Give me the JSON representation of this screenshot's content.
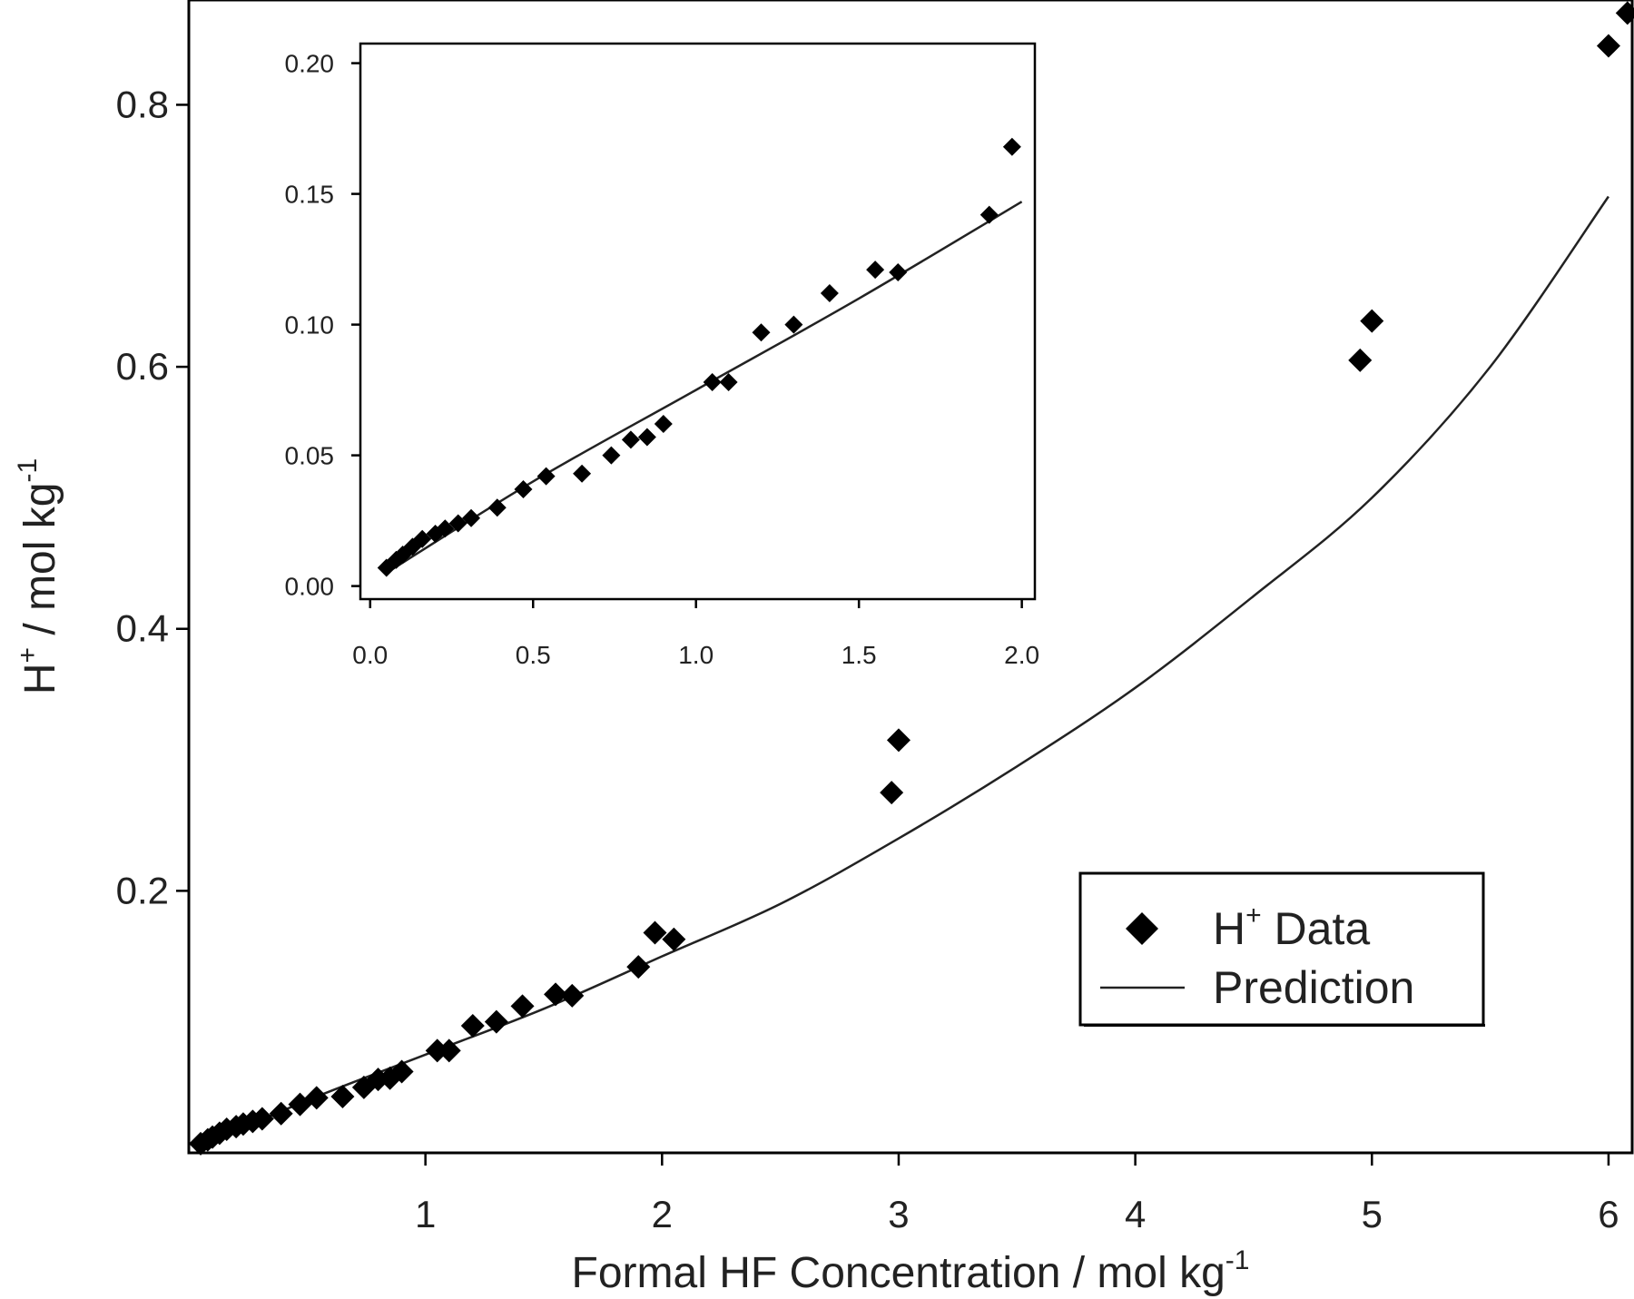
{
  "chart_data": [
    {
      "id": "main",
      "type": "scatter",
      "xlabel": "Formal HF Concentration / mol kg",
      "xlabel_sup": "-1",
      "ylabel": "H",
      "ylabel_sup1": "+",
      "ylabel_mid": " / mol kg",
      "ylabel_sup2": "-1",
      "xlim": [
        0.0,
        6.1
      ],
      "ylim": [
        0.0,
        0.88
      ],
      "xticks": [
        1,
        2,
        3,
        4,
        5,
        6
      ],
      "yticks": [
        0.2,
        0.4,
        0.6,
        0.8
      ],
      "xtick_labels": [
        "1",
        "2",
        "3",
        "4",
        "5",
        "6"
      ],
      "ytick_labels": [
        "0.2",
        "0.4",
        "0.6",
        "0.8"
      ],
      "legend": {
        "placement": "lower-right",
        "data_name": "H",
        "data_sup": "+",
        "data_suffix": " Data",
        "prediction_name": "Prediction"
      },
      "series": [
        {
          "name": "H+ Data",
          "marker": "diamond",
          "x": [
            0.05,
            0.08,
            0.1,
            0.13,
            0.16,
            0.2,
            0.23,
            0.27,
            0.31,
            0.39,
            0.47,
            0.54,
            0.65,
            0.74,
            0.8,
            0.85,
            0.9,
            1.05,
            1.1,
            1.2,
            1.3,
            1.41,
            1.55,
            1.62,
            1.9,
            1.97,
            2.05,
            2.97,
            3.0,
            4.95,
            5.0,
            6.0,
            6.08
          ],
          "y": [
            0.007,
            0.01,
            0.012,
            0.015,
            0.018,
            0.02,
            0.022,
            0.024,
            0.026,
            0.03,
            0.037,
            0.042,
            0.043,
            0.05,
            0.056,
            0.057,
            0.062,
            0.078,
            0.078,
            0.097,
            0.1,
            0.112,
            0.121,
            0.12,
            0.142,
            0.168,
            0.163,
            0.275,
            0.315,
            0.605,
            0.635,
            0.845,
            0.87
          ]
        },
        {
          "name": "Prediction",
          "type": "line",
          "x": [
            0.05,
            0.5,
            1.0,
            1.5,
            2.0,
            2.5,
            3.0,
            3.5,
            4.0,
            4.5,
            5.0,
            5.5,
            6.0
          ],
          "y": [
            0.005,
            0.04,
            0.075,
            0.11,
            0.15,
            0.19,
            0.24,
            0.295,
            0.355,
            0.425,
            0.5,
            0.6,
            0.73
          ]
        }
      ]
    },
    {
      "id": "inset",
      "type": "scatter",
      "xlim": [
        -0.03,
        2.04
      ],
      "ylim": [
        -0.005,
        0.2075
      ],
      "xticks": [
        0.0,
        0.5,
        1.0,
        1.5,
        2.0
      ],
      "yticks": [
        0.0,
        0.05,
        0.1,
        0.15,
        0.2
      ],
      "xtick_labels": [
        "0.0",
        "0.5",
        "1.0",
        "1.5",
        "2.0"
      ],
      "ytick_labels": [
        "0.00",
        "0.05",
        "0.10",
        "0.15",
        "0.20"
      ],
      "series": [
        {
          "name": "H+ Data",
          "marker": "diamond",
          "x": [
            0.05,
            0.08,
            0.1,
            0.13,
            0.16,
            0.2,
            0.23,
            0.27,
            0.31,
            0.39,
            0.47,
            0.54,
            0.65,
            0.74,
            0.8,
            0.85,
            0.9,
            1.05,
            1.1,
            1.2,
            1.3,
            1.41,
            1.55,
            1.62,
            1.9,
            1.97
          ],
          "y": [
            0.007,
            0.01,
            0.012,
            0.015,
            0.018,
            0.02,
            0.022,
            0.024,
            0.026,
            0.03,
            0.037,
            0.042,
            0.043,
            0.05,
            0.056,
            0.057,
            0.062,
            0.078,
            0.078,
            0.097,
            0.1,
            0.112,
            0.121,
            0.12,
            0.142,
            0.168
          ]
        },
        {
          "name": "Prediction",
          "type": "line",
          "x": [
            0.05,
            0.5,
            1.0,
            1.5,
            2.0
          ],
          "y": [
            0.005,
            0.04,
            0.075,
            0.11,
            0.147
          ]
        }
      ]
    }
  ]
}
